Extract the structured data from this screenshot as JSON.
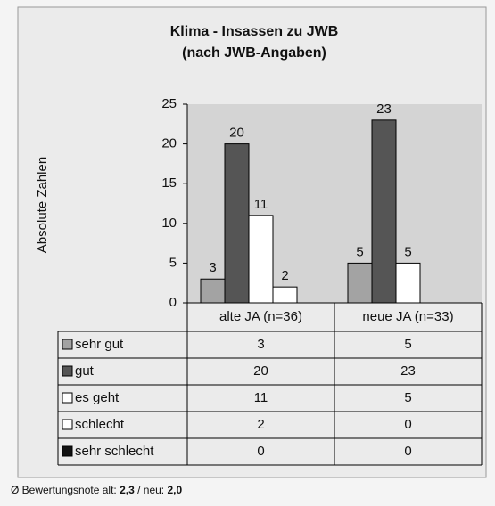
{
  "chart_data": {
    "type": "bar",
    "title": "Klima - Insassen zu JWB",
    "subtitle": "(nach JWB-Angaben)",
    "y_label": "Absolute Zahlen",
    "categories": [
      "alte JA (n=36)",
      "neue JA (n=33)"
    ],
    "series": [
      {
        "name": "sehr gut",
        "color": "#a3a3a3",
        "values": [
          3,
          5
        ]
      },
      {
        "name": "gut",
        "color": "#555555",
        "values": [
          20,
          23
        ]
      },
      {
        "name": "es geht",
        "color": "#ffffff",
        "values": [
          11,
          5
        ]
      },
      {
        "name": "schlecht",
        "color": "#ffffff",
        "values": [
          2,
          0
        ]
      },
      {
        "name": "sehr schlecht",
        "color": "#111111",
        "values": [
          0,
          0
        ]
      }
    ],
    "ylim": [
      0,
      25
    ],
    "yticks": [
      0,
      5,
      10,
      15,
      20,
      25
    ]
  },
  "footer": {
    "prefix": "Ø Bewertungsnote alt: ",
    "alt": "2,3",
    "middle": " / neu: ",
    "neu": "2,0"
  }
}
